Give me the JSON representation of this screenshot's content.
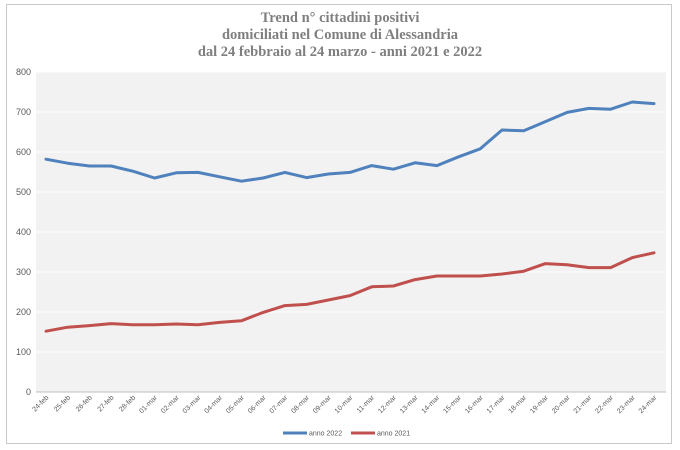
{
  "chart_data": {
    "type": "line",
    "title": [
      "Trend n° cittadini positivi",
      "domiciliati nel Comune di Alessandria",
      "dal 24 febbraio al 24 marzo - anni 2021 e 2022"
    ],
    "xlabel": "",
    "ylabel": "",
    "ylim": [
      0,
      800
    ],
    "yticks": [
      0,
      100,
      200,
      300,
      400,
      500,
      600,
      700,
      800
    ],
    "grid": true,
    "legend_position": "bottom",
    "categories": [
      "24-feb",
      "25-feb",
      "26-feb",
      "27-feb",
      "28-feb",
      "01-mar",
      "02-mar",
      "03-mar",
      "04-mar",
      "05-mar",
      "06-mar",
      "07-mar",
      "08-mar",
      "09-mar",
      "10-mar",
      "11-mar",
      "12-mar",
      "13-mar",
      "14-mar",
      "15-mar",
      "16-mar",
      "17-mar",
      "18-mar",
      "19-mar",
      "20-mar",
      "21-mar",
      "22-mar",
      "23-mar",
      "24-mar"
    ],
    "series": [
      {
        "name": "anno 2022",
        "color": "#4f81bd",
        "values": [
          582,
          572,
          565,
          565,
          552,
          535,
          548,
          549,
          538,
          527,
          535,
          549,
          536,
          545,
          549,
          566,
          557,
          573,
          566,
          588,
          608,
          655,
          653,
          676,
          699,
          709,
          707,
          725,
          721
        ]
      },
      {
        "name": "anno 2021",
        "color": "#c0504d",
        "values": [
          152,
          162,
          166,
          171,
          168,
          168,
          170,
          168,
          174,
          178,
          199,
          216,
          219,
          230,
          241,
          263,
          265,
          281,
          290,
          290,
          290,
          295,
          302,
          321,
          318,
          311,
          311,
          336,
          348
        ]
      }
    ]
  }
}
